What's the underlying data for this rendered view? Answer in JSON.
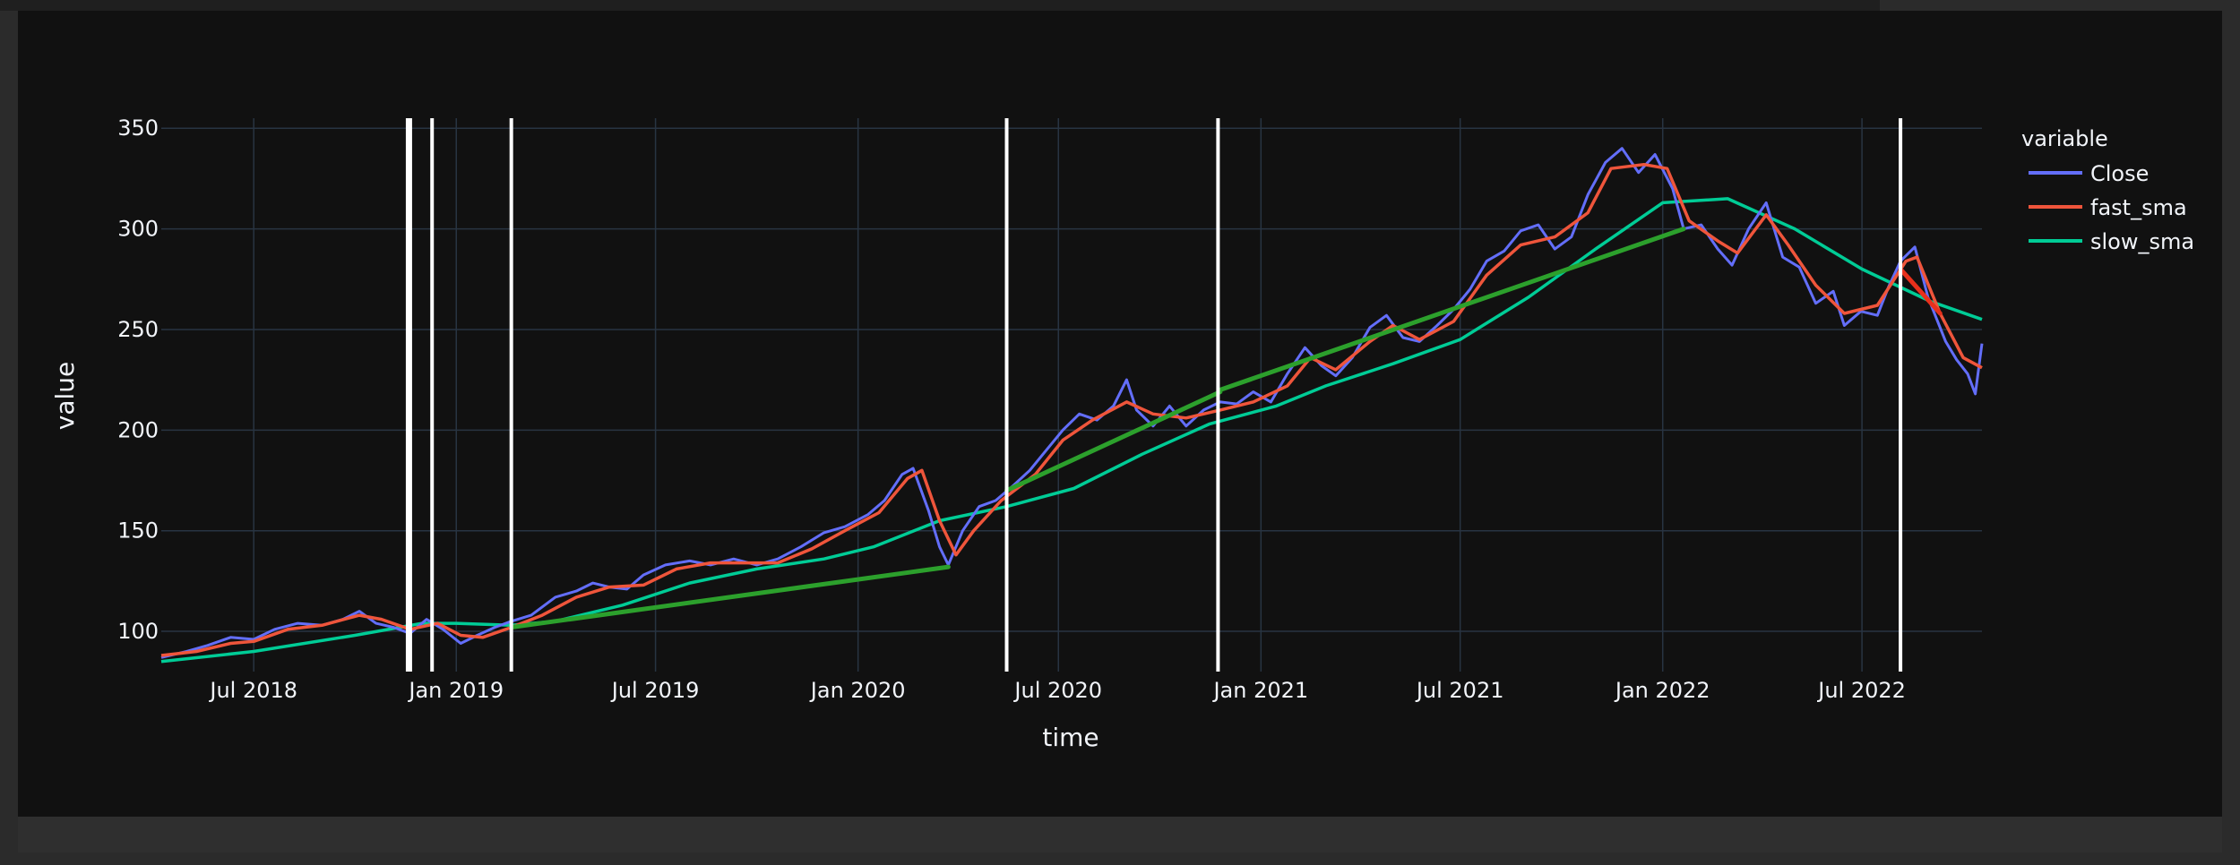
{
  "chart_data": {
    "type": "line",
    "xlabel": "time",
    "ylabel": "value",
    "x_range": [
      "2018-04-08",
      "2022-10-18"
    ],
    "ylim": [
      80,
      355
    ],
    "x_ticks": [
      {
        "date": "2018-07-01",
        "label": "Jul 2018"
      },
      {
        "date": "2019-01-01",
        "label": "Jan 2019"
      },
      {
        "date": "2019-07-01",
        "label": "Jul 2019"
      },
      {
        "date": "2020-01-01",
        "label": "Jan 2020"
      },
      {
        "date": "2020-07-01",
        "label": "Jul 2020"
      },
      {
        "date": "2021-01-01",
        "label": "Jan 2021"
      },
      {
        "date": "2021-07-01",
        "label": "Jul 2021"
      },
      {
        "date": "2022-01-01",
        "label": "Jan 2022"
      },
      {
        "date": "2022-07-01",
        "label": "Jul 2022"
      }
    ],
    "y_ticks": [
      100,
      150,
      200,
      250,
      300,
      350
    ],
    "grid": true,
    "legend": {
      "title": "variable",
      "placement": "right"
    },
    "colors": {
      "background": "#111111",
      "grid": "#283442",
      "text": "#f2f5fa",
      "close": "#636efa",
      "fast_sma": "#ef553b",
      "slow_sma": "#00cc96",
      "trend_up": "#2ca02c",
      "trend_down": "#e8301c",
      "vline": "#ffffff"
    },
    "series": [
      {
        "name": "Close",
        "key": "close",
        "points": [
          [
            "2018-04-08",
            87
          ],
          [
            "2018-05-01",
            90
          ],
          [
            "2018-05-20",
            93
          ],
          [
            "2018-06-10",
            97
          ],
          [
            "2018-07-01",
            96
          ],
          [
            "2018-07-20",
            101
          ],
          [
            "2018-08-10",
            104
          ],
          [
            "2018-09-01",
            103
          ],
          [
            "2018-09-20",
            106
          ],
          [
            "2018-10-05",
            110
          ],
          [
            "2018-10-20",
            104
          ],
          [
            "2018-11-05",
            102
          ],
          [
            "2018-11-20",
            99
          ],
          [
            "2018-12-05",
            106
          ],
          [
            "2018-12-20",
            101
          ],
          [
            "2019-01-05",
            94
          ],
          [
            "2019-01-20",
            98
          ],
          [
            "2019-02-05",
            102
          ],
          [
            "2019-02-20",
            105
          ],
          [
            "2019-03-10",
            108
          ],
          [
            "2019-04-01",
            117
          ],
          [
            "2019-04-20",
            120
          ],
          [
            "2019-05-05",
            124
          ],
          [
            "2019-05-20",
            122
          ],
          [
            "2019-06-05",
            121
          ],
          [
            "2019-06-20",
            128
          ],
          [
            "2019-07-10",
            133
          ],
          [
            "2019-08-01",
            135
          ],
          [
            "2019-08-20",
            133
          ],
          [
            "2019-09-10",
            136
          ],
          [
            "2019-10-01",
            133
          ],
          [
            "2019-10-20",
            136
          ],
          [
            "2019-11-10",
            142
          ],
          [
            "2019-12-01",
            149
          ],
          [
            "2019-12-20",
            152
          ],
          [
            "2020-01-10",
            158
          ],
          [
            "2020-01-25",
            165
          ],
          [
            "2020-02-10",
            178
          ],
          [
            "2020-02-20",
            181
          ],
          [
            "2020-03-05",
            160
          ],
          [
            "2020-03-15",
            142
          ],
          [
            "2020-03-23",
            133
          ],
          [
            "2020-04-05",
            150
          ],
          [
            "2020-04-20",
            162
          ],
          [
            "2020-05-05",
            165
          ],
          [
            "2020-05-20",
            172
          ],
          [
            "2020-06-05",
            180
          ],
          [
            "2020-06-20",
            190
          ],
          [
            "2020-07-05",
            200
          ],
          [
            "2020-07-20",
            208
          ],
          [
            "2020-08-05",
            205
          ],
          [
            "2020-08-20",
            212
          ],
          [
            "2020-09-01",
            225
          ],
          [
            "2020-09-10",
            210
          ],
          [
            "2020-09-25",
            202
          ],
          [
            "2020-10-10",
            212
          ],
          [
            "2020-10-25",
            202
          ],
          [
            "2020-11-10",
            210
          ],
          [
            "2020-11-25",
            214
          ],
          [
            "2020-12-10",
            213
          ],
          [
            "2020-12-25",
            219
          ],
          [
            "2021-01-10",
            214
          ],
          [
            "2021-01-25",
            228
          ],
          [
            "2021-02-10",
            241
          ],
          [
            "2021-02-25",
            232
          ],
          [
            "2021-03-10",
            227
          ],
          [
            "2021-03-25",
            236
          ],
          [
            "2021-04-10",
            251
          ],
          [
            "2021-04-25",
            257
          ],
          [
            "2021-05-10",
            246
          ],
          [
            "2021-05-25",
            244
          ],
          [
            "2021-06-10",
            252
          ],
          [
            "2021-06-25",
            260
          ],
          [
            "2021-07-10",
            270
          ],
          [
            "2021-07-25",
            284
          ],
          [
            "2021-08-10",
            289
          ],
          [
            "2021-08-25",
            299
          ],
          [
            "2021-09-10",
            302
          ],
          [
            "2021-09-25",
            290
          ],
          [
            "2021-10-10",
            296
          ],
          [
            "2021-10-25",
            317
          ],
          [
            "2021-11-10",
            333
          ],
          [
            "2021-11-25",
            340
          ],
          [
            "2021-12-10",
            328
          ],
          [
            "2021-12-25",
            337
          ],
          [
            "2022-01-10",
            320
          ],
          [
            "2022-01-20",
            300
          ],
          [
            "2022-02-05",
            302
          ],
          [
            "2022-02-20",
            290
          ],
          [
            "2022-03-05",
            282
          ],
          [
            "2022-03-20",
            300
          ],
          [
            "2022-04-05",
            313
          ],
          [
            "2022-04-20",
            286
          ],
          [
            "2022-05-05",
            281
          ],
          [
            "2022-05-20",
            263
          ],
          [
            "2022-06-05",
            269
          ],
          [
            "2022-06-15",
            252
          ],
          [
            "2022-06-30",
            259
          ],
          [
            "2022-07-15",
            257
          ],
          [
            "2022-07-25",
            271
          ],
          [
            "2022-08-05",
            284
          ],
          [
            "2022-08-18",
            291
          ],
          [
            "2022-08-30",
            266
          ],
          [
            "2022-09-15",
            244
          ],
          [
            "2022-09-25",
            235
          ],
          [
            "2022-10-05",
            228
          ],
          [
            "2022-10-12",
            218
          ],
          [
            "2022-10-18",
            243
          ]
        ]
      },
      {
        "name": "fast_sma",
        "key": "fast_sma",
        "points": [
          [
            "2018-04-08",
            88
          ],
          [
            "2018-05-10",
            90
          ],
          [
            "2018-06-10",
            94
          ],
          [
            "2018-07-01",
            95
          ],
          [
            "2018-08-01",
            101
          ],
          [
            "2018-09-01",
            103
          ],
          [
            "2018-10-05",
            108
          ],
          [
            "2018-10-25",
            106
          ],
          [
            "2018-11-20",
            101
          ],
          [
            "2018-12-15",
            104
          ],
          [
            "2019-01-05",
            98
          ],
          [
            "2019-01-25",
            97
          ],
          [
            "2019-02-20",
            102
          ],
          [
            "2019-03-20",
            108
          ],
          [
            "2019-04-20",
            117
          ],
          [
            "2019-05-20",
            122
          ],
          [
            "2019-06-20",
            123
          ],
          [
            "2019-07-20",
            131
          ],
          [
            "2019-08-20",
            134
          ],
          [
            "2019-09-20",
            134
          ],
          [
            "2019-10-20",
            134
          ],
          [
            "2019-11-20",
            141
          ],
          [
            "2019-12-20",
            150
          ],
          [
            "2020-01-20",
            159
          ],
          [
            "2020-02-15",
            176
          ],
          [
            "2020-02-28",
            180
          ],
          [
            "2020-03-15",
            155
          ],
          [
            "2020-03-30",
            138
          ],
          [
            "2020-04-15",
            150
          ],
          [
            "2020-05-10",
            165
          ],
          [
            "2020-06-10",
            178
          ],
          [
            "2020-07-05",
            195
          ],
          [
            "2020-08-01",
            205
          ],
          [
            "2020-09-01",
            214
          ],
          [
            "2020-09-25",
            208
          ],
          [
            "2020-10-25",
            206
          ],
          [
            "2020-11-25",
            210
          ],
          [
            "2020-12-25",
            214
          ],
          [
            "2021-01-25",
            222
          ],
          [
            "2021-02-15",
            236
          ],
          [
            "2021-03-10",
            230
          ],
          [
            "2021-04-10",
            244
          ],
          [
            "2021-05-01",
            252
          ],
          [
            "2021-05-25",
            245
          ],
          [
            "2021-06-25",
            254
          ],
          [
            "2021-07-25",
            277
          ],
          [
            "2021-08-25",
            292
          ],
          [
            "2021-09-25",
            296
          ],
          [
            "2021-10-25",
            308
          ],
          [
            "2021-11-15",
            330
          ],
          [
            "2021-12-15",
            332
          ],
          [
            "2022-01-05",
            330
          ],
          [
            "2022-01-25",
            304
          ],
          [
            "2022-02-20",
            294
          ],
          [
            "2022-03-10",
            288
          ],
          [
            "2022-04-05",
            307
          ],
          [
            "2022-04-25",
            292
          ],
          [
            "2022-05-20",
            272
          ],
          [
            "2022-06-15",
            258
          ],
          [
            "2022-07-15",
            262
          ],
          [
            "2022-08-10",
            284
          ],
          [
            "2022-08-20",
            286
          ],
          [
            "2022-09-10",
            258
          ],
          [
            "2022-10-01",
            236
          ],
          [
            "2022-10-18",
            231
          ]
        ]
      },
      {
        "name": "slow_sma",
        "key": "slow_sma",
        "points": [
          [
            "2018-04-08",
            85
          ],
          [
            "2018-07-01",
            90
          ],
          [
            "2018-10-01",
            98
          ],
          [
            "2018-12-01",
            104
          ],
          [
            "2019-01-01",
            104
          ],
          [
            "2019-02-20",
            103
          ],
          [
            "2019-04-01",
            105
          ],
          [
            "2019-06-01",
            113
          ],
          [
            "2019-08-01",
            124
          ],
          [
            "2019-10-01",
            131
          ],
          [
            "2019-12-01",
            136
          ],
          [
            "2020-01-15",
            142
          ],
          [
            "2020-03-15",
            155
          ],
          [
            "2020-05-15",
            162
          ],
          [
            "2020-07-15",
            171
          ],
          [
            "2020-09-15",
            188
          ],
          [
            "2020-11-15",
            203
          ],
          [
            "2021-01-15",
            212
          ],
          [
            "2021-03-01",
            222
          ],
          [
            "2021-05-01",
            233
          ],
          [
            "2021-07-01",
            245
          ],
          [
            "2021-09-01",
            266
          ],
          [
            "2021-11-01",
            290
          ],
          [
            "2022-01-01",
            313
          ],
          [
            "2022-03-01",
            315
          ],
          [
            "2022-05-01",
            300
          ],
          [
            "2022-07-01",
            280
          ],
          [
            "2022-09-01",
            264
          ],
          [
            "2022-10-18",
            255
          ]
        ]
      }
    ],
    "trend_lines": [
      {
        "key": "trend_up",
        "start": [
          "2019-02-20",
          102
        ],
        "end": [
          "2020-03-23",
          132
        ]
      },
      {
        "key": "trend_up",
        "start": [
          "2020-05-15",
          170
        ],
        "end": [
          "2020-11-25",
          219
        ]
      },
      {
        "key": "trend_up",
        "start": [
          "2020-11-25",
          220
        ],
        "end": [
          "2022-01-20",
          300
        ]
      },
      {
        "key": "trend_down",
        "start": [
          "2022-08-05",
          280
        ],
        "end": [
          "2022-09-10",
          258
        ]
      }
    ],
    "vertical_lines": [
      {
        "date": "2018-11-19",
        "thick": true
      },
      {
        "date": "2018-12-10",
        "thick": false
      },
      {
        "date": "2019-02-20",
        "thick": false
      },
      {
        "date": "2020-05-15",
        "thick": false
      },
      {
        "date": "2020-11-23",
        "thick": false
      },
      {
        "date": "2022-08-05",
        "thick": false
      }
    ]
  }
}
